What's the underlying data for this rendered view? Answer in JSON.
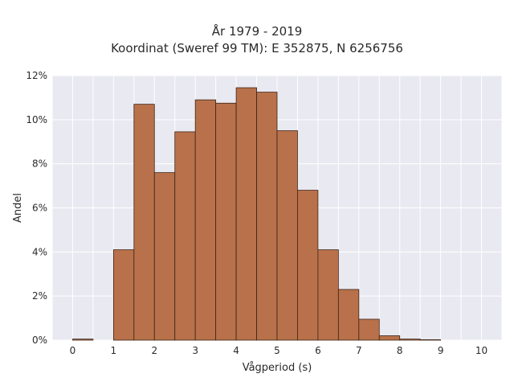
{
  "chart_data": {
    "type": "bar",
    "title_lines": [
      "År 1979 - 2019",
      "Koordinat (Sweref 99 TM): E 352875, N 6256756"
    ],
    "xlabel": "Vågperiod (s)",
    "ylabel": "Andel",
    "xlim": [
      -0.5,
      10.5
    ],
    "ylim": [
      0,
      12
    ],
    "x_ticks": [
      0,
      1,
      2,
      3,
      4,
      5,
      6,
      7,
      8,
      9,
      10
    ],
    "x_tick_labels": [
      "0",
      "1",
      "2",
      "3",
      "4",
      "5",
      "6",
      "7",
      "8",
      "9",
      "10"
    ],
    "y_ticks": [
      0,
      2,
      4,
      6,
      8,
      10,
      12
    ],
    "y_tick_labels": [
      "0%",
      "2%",
      "4%",
      "6%",
      "8%",
      "10%",
      "12%"
    ],
    "grid": true,
    "bin_width": 0.5,
    "bin_starts": [
      0,
      0.5,
      1,
      1.5,
      2,
      2.5,
      3,
      3.5,
      4,
      4.5,
      5,
      5.5,
      6,
      6.5,
      7,
      7.5,
      8,
      8.5,
      9,
      9.5
    ],
    "values": [
      0.05,
      0,
      4.1,
      10.7,
      7.6,
      9.45,
      10.9,
      10.75,
      11.45,
      11.25,
      9.5,
      6.8,
      4.1,
      2.3,
      0.95,
      0.2,
      0.05,
      0.02,
      0,
      0
    ],
    "unit": "%",
    "colors": {
      "bar_fill": "#b8714a",
      "bar_edge": "#3d2416",
      "plot_background": "#e9e9f1",
      "grid": "#ffffff",
      "text": "#2a2a2a"
    }
  }
}
